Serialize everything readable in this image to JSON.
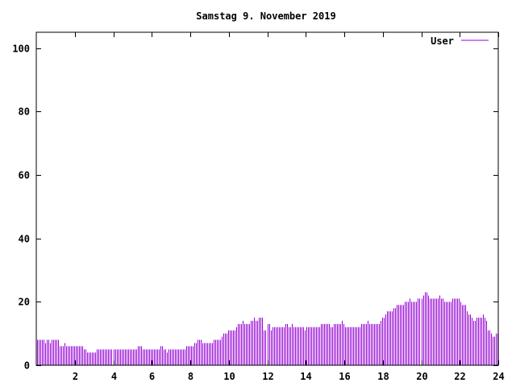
{
  "chart_data": {
    "type": "bar",
    "title": "Samstag 9. November 2019",
    "xlabel": "",
    "ylabel": "",
    "xlim": [
      0,
      24
    ],
    "ylim": [
      0,
      105
    ],
    "x_ticks": [
      2,
      4,
      6,
      8,
      10,
      12,
      14,
      16,
      18,
      20,
      22,
      24
    ],
    "y_ticks": [
      0,
      20,
      40,
      60,
      80,
      100
    ],
    "grid": false,
    "legend_position": "top-right",
    "colors": {
      "series": "#9400d3",
      "axis": "#000000"
    },
    "series": [
      {
        "name": "User",
        "values": [
          8,
          8,
          8,
          8,
          8,
          7,
          8,
          8,
          7,
          8,
          8,
          8,
          8,
          8,
          6,
          6,
          6,
          7,
          6,
          6,
          6,
          6,
          6,
          6,
          6,
          6,
          6,
          6,
          6,
          5,
          5,
          4,
          4,
          4,
          4,
          4,
          4,
          5,
          5,
          5,
          5,
          5,
          5,
          5,
          5,
          5,
          5,
          5,
          5,
          5,
          5,
          5,
          5,
          5,
          5,
          5,
          5,
          5,
          5,
          5,
          5,
          5,
          6,
          6,
          6,
          5,
          5,
          5,
          5,
          5,
          5,
          5,
          5,
          5,
          5,
          5,
          6,
          6,
          5,
          5,
          4,
          5,
          5,
          5,
          5,
          5,
          5,
          5,
          5,
          5,
          5,
          5,
          6,
          6,
          6,
          6,
          6,
          7,
          7,
          8,
          8,
          8,
          7,
          7,
          7,
          7,
          7,
          7,
          7,
          8,
          8,
          8,
          8,
          8,
          9,
          10,
          10,
          10,
          11,
          11,
          11,
          11,
          11,
          12,
          13,
          13,
          13,
          14,
          13,
          13,
          13,
          13,
          14,
          14,
          15,
          14,
          14,
          15,
          15,
          15,
          11,
          11,
          13,
          13,
          11,
          12,
          12,
          12,
          12,
          12,
          12,
          12,
          12,
          13,
          13,
          12,
          12,
          13,
          12,
          12,
          12,
          12,
          12,
          12,
          12,
          11,
          12,
          12,
          12,
          12,
          12,
          12,
          12,
          12,
          12,
          13,
          13,
          13,
          13,
          13,
          13,
          12,
          12,
          13,
          13,
          13,
          13,
          13,
          14,
          13,
          12,
          12,
          12,
          12,
          12,
          12,
          12,
          12,
          12,
          12,
          13,
          13,
          13,
          13,
          14,
          13,
          13,
          13,
          13,
          13,
          13,
          13,
          14,
          15,
          15,
          16,
          17,
          17,
          17,
          17,
          18,
          18,
          19,
          19,
          19,
          19,
          19,
          20,
          20,
          20,
          21,
          20,
          20,
          20,
          20,
          21,
          21,
          21,
          22,
          23,
          23,
          22,
          21,
          21,
          21,
          21,
          21,
          21,
          22,
          21,
          21,
          20,
          20,
          20,
          20,
          20,
          21,
          21,
          21,
          21,
          21,
          20,
          19,
          19,
          19,
          17,
          16,
          16,
          15,
          14,
          14,
          15,
          15,
          15,
          15,
          16,
          15,
          14,
          11,
          11,
          10,
          9,
          9,
          10,
          10
        ]
      }
    ]
  }
}
